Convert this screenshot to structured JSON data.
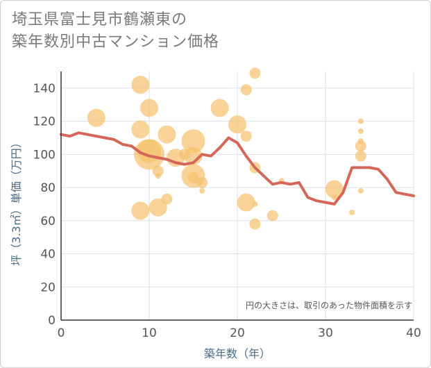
{
  "title": {
    "line1": "埼玉県富士見市鶴瀬東の",
    "line2": "築年数別中古マンション価格"
  },
  "chart_data": {
    "type": "scatter",
    "xlabel": "築年数（年）",
    "ylabel": "坪（3.3㎡）単価（万円）",
    "xlim": [
      0,
      40
    ],
    "ylim": [
      0,
      150
    ],
    "xticks": [
      0,
      10,
      20,
      30,
      40
    ],
    "yticks": [
      0,
      20,
      40,
      60,
      80,
      100,
      120,
      140
    ],
    "note": "円の大きさは、取引のあった物件面積を示す",
    "colors": {
      "bubble": "#f5c06e",
      "line": "#d4675a",
      "grid": "#d9dee6",
      "axis": "#333333"
    },
    "points": [
      {
        "x": 4,
        "y": 122,
        "s": 3
      },
      {
        "x": 9,
        "y": 142,
        "s": 3
      },
      {
        "x": 9,
        "y": 115,
        "s": 3
      },
      {
        "x": 9,
        "y": 66,
        "s": 3
      },
      {
        "x": 10,
        "y": 128,
        "s": 3
      },
      {
        "x": 10,
        "y": 102,
        "s": 4
      },
      {
        "x": 10,
        "y": 100,
        "s": 5
      },
      {
        "x": 11,
        "y": 90,
        "s": 2
      },
      {
        "x": 11,
        "y": 87,
        "s": 1
      },
      {
        "x": 11,
        "y": 68,
        "s": 3
      },
      {
        "x": 12,
        "y": 112,
        "s": 3
      },
      {
        "x": 12,
        "y": 73,
        "s": 2
      },
      {
        "x": 13,
        "y": 98,
        "s": 3
      },
      {
        "x": 14,
        "y": 100,
        "s": 2
      },
      {
        "x": 15,
        "y": 108,
        "s": 4
      },
      {
        "x": 15,
        "y": 99,
        "s": 3
      },
      {
        "x": 15,
        "y": 87,
        "s": 4
      },
      {
        "x": 15,
        "y": 86,
        "s": 2
      },
      {
        "x": 16,
        "y": 83,
        "s": 2
      },
      {
        "x": 16,
        "y": 78,
        "s": 1
      },
      {
        "x": 18,
        "y": 128,
        "s": 3
      },
      {
        "x": 20,
        "y": 118,
        "s": 3
      },
      {
        "x": 21,
        "y": 139,
        "s": 2
      },
      {
        "x": 21,
        "y": 111,
        "s": 2
      },
      {
        "x": 21,
        "y": 71,
        "s": 3
      },
      {
        "x": 22,
        "y": 149,
        "s": 2
      },
      {
        "x": 22,
        "y": 92,
        "s": 2
      },
      {
        "x": 22,
        "y": 70,
        "s": 1
      },
      {
        "x": 22,
        "y": 58,
        "s": 2
      },
      {
        "x": 24,
        "y": 63,
        "s": 2
      },
      {
        "x": 25,
        "y": 84,
        "s": 1
      },
      {
        "x": 31,
        "y": 79,
        "s": 3
      },
      {
        "x": 31,
        "y": 74,
        "s": 1
      },
      {
        "x": 33,
        "y": 65,
        "s": 1
      },
      {
        "x": 34,
        "y": 120,
        "s": 1
      },
      {
        "x": 34,
        "y": 114,
        "s": 1
      },
      {
        "x": 34,
        "y": 108,
        "s": 1
      },
      {
        "x": 34,
        "y": 105,
        "s": 2
      },
      {
        "x": 34,
        "y": 99,
        "s": 2
      },
      {
        "x": 34,
        "y": 78,
        "s": 1
      }
    ],
    "series": [
      {
        "x": [
          0,
          1,
          2,
          3,
          4,
          5,
          6,
          7,
          8,
          9,
          10,
          11,
          12,
          13,
          14,
          15,
          16,
          17,
          18,
          19,
          20,
          21,
          22,
          23,
          24,
          25,
          26,
          27,
          28,
          29,
          30,
          31,
          32,
          33,
          34,
          35,
          36,
          37,
          38,
          39,
          40
        ],
        "y": [
          112,
          111,
          113,
          112,
          111,
          110,
          109,
          106,
          105,
          101,
          99,
          98,
          97,
          95,
          94,
          95,
          100,
          99,
          104,
          110,
          107,
          99,
          92,
          87,
          82,
          83,
          82,
          83,
          74,
          72,
          71,
          70,
          77,
          92,
          92,
          92,
          91,
          85,
          77,
          76,
          75
        ]
      }
    ]
  }
}
